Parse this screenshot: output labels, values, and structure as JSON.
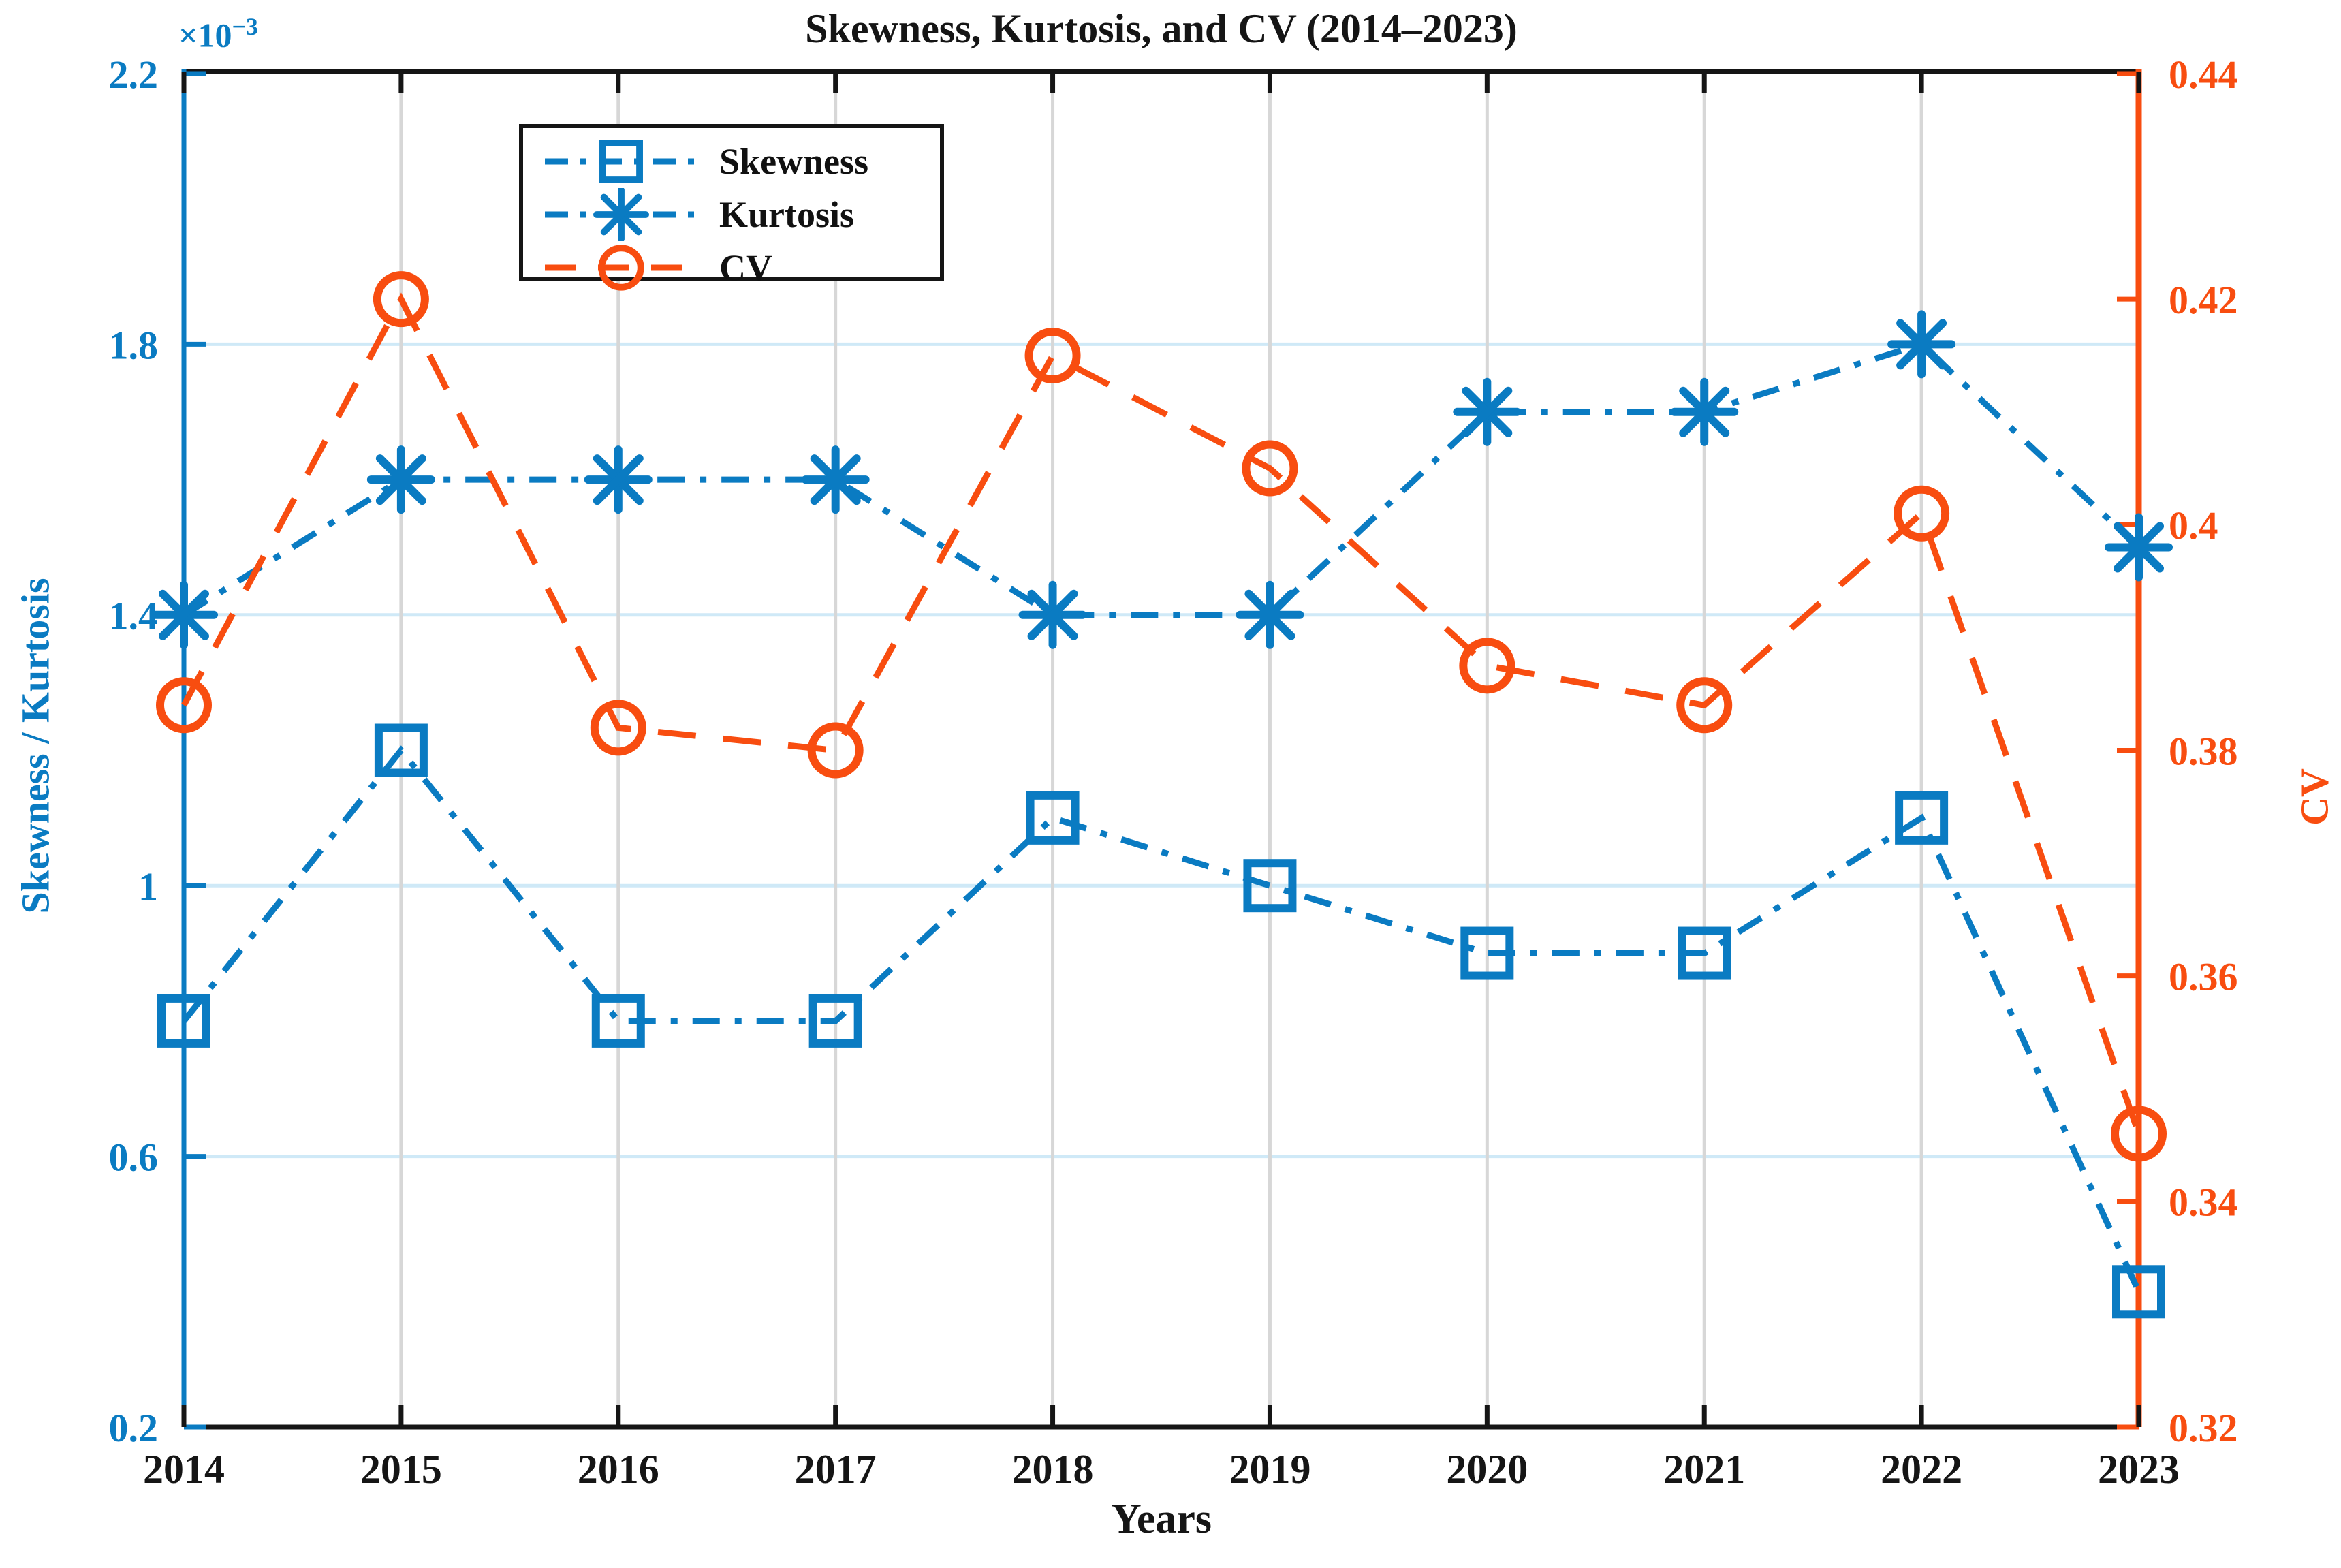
{
  "title": "Skewness, Kurtosis, and CV (2014–2023)",
  "axes": {
    "x_label": "Years",
    "left_label": "Skewness / Kurtosis",
    "left_exponent_base": "×10",
    "left_exponent_power": "−3",
    "right_label": "CV"
  },
  "colors": {
    "blue": "#0a7bc2",
    "orange": "#f84d10",
    "grid_horizontal": "#cfe9f7",
    "grid_vertical": "#d7d7d7",
    "axis_black": "#151515",
    "background": "#ffffff"
  },
  "chart_data": {
    "type": "line",
    "x": [
      "2014",
      "2015",
      "2016",
      "2017",
      "2018",
      "2019",
      "2020",
      "2021",
      "2022",
      "2023"
    ],
    "series": [
      {
        "name": "Skewness",
        "axis": "left",
        "marker": "square",
        "linestyle": "dashdot",
        "values": [
          0.8,
          1.2,
          0.8,
          0.8,
          1.1,
          1.0,
          0.9,
          0.9,
          1.1,
          0.4
        ],
        "color_key": "blue"
      },
      {
        "name": "Kurtosis",
        "axis": "left",
        "marker": "asterisk",
        "linestyle": "dashdot",
        "values": [
          1.4,
          1.6,
          1.6,
          1.6,
          1.4,
          1.4,
          1.7,
          1.7,
          1.8,
          1.5
        ],
        "color_key": "blue"
      },
      {
        "name": "CV",
        "axis": "right",
        "marker": "circle",
        "linestyle": "dashed",
        "values": [
          0.384,
          0.42,
          0.382,
          0.38,
          0.415,
          0.405,
          0.3875,
          0.384,
          0.401,
          0.346
        ],
        "color_key": "orange"
      }
    ],
    "left_ylim": [
      0.2,
      2.2
    ],
    "right_ylim": [
      0.32,
      0.44
    ],
    "left_unit_scale": "1e-3",
    "left_tick_values": [
      2.2,
      1.8,
      1.4,
      1.0,
      0.6,
      0.2
    ],
    "left_tick_labels": [
      "2.2",
      "1.8",
      "1.4",
      "1",
      "0.6",
      "0.2"
    ],
    "right_tick_values": [
      0.44,
      0.42,
      0.4,
      0.38,
      0.36,
      0.34,
      0.32
    ],
    "right_tick_labels": [
      "0.44",
      "0.42",
      "0.4",
      "0.38",
      "0.36",
      "0.34",
      "0.32"
    ],
    "grid": true,
    "legend_position": "upper-left-inside",
    "title": "Skewness, Kurtosis, and CV (2014–2023)",
    "xlabel": "Years",
    "ylabel_left": "Skewness / Kurtosis",
    "ylabel_right": "CV"
  }
}
